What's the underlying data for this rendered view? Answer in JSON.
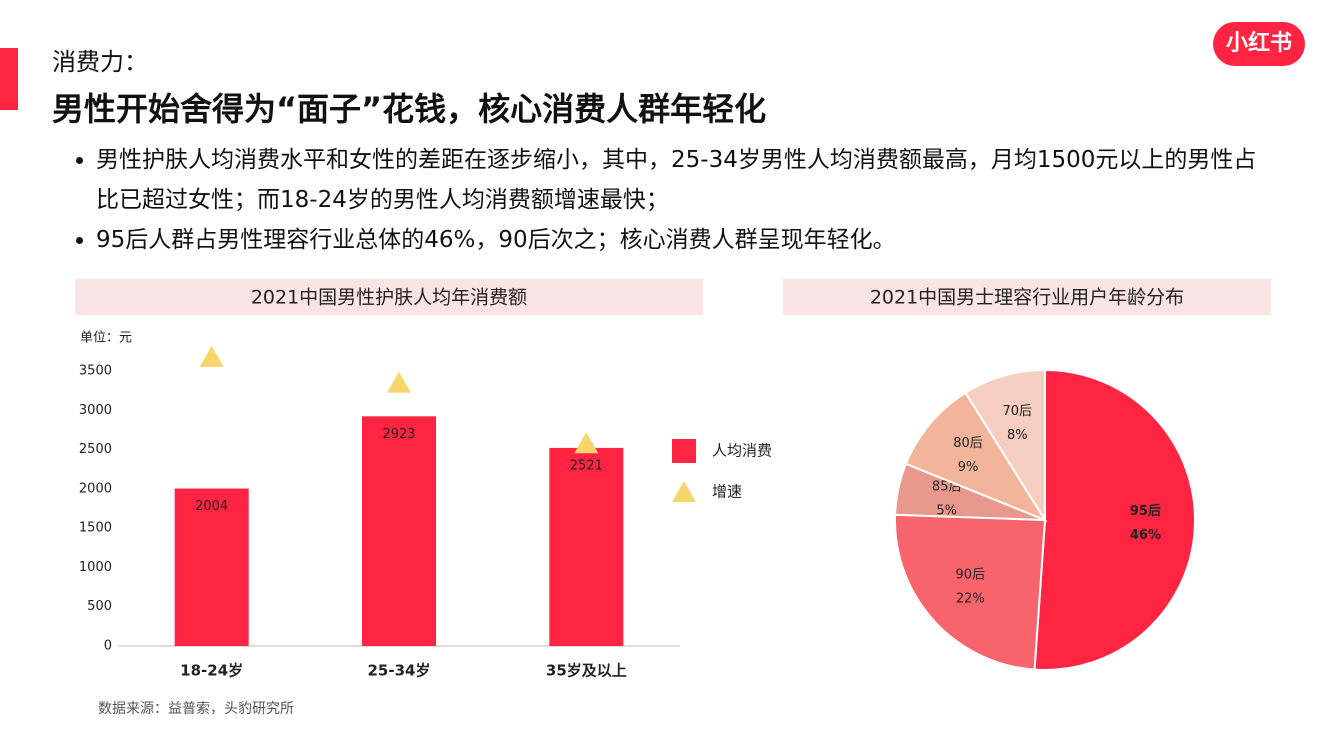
{
  "header": {
    "kicker": "消费力：",
    "title": "男性开始舍得为“面子”花钱，核心消费人群年轻化",
    "logo": "小红书"
  },
  "bullets": [
    "男性护肤人均消费水平和女性的差距在逐步缩小，其中，25-34岁男性人均消费额最高，月均1500元以上的男性占比已超过女性；而18-24岁的男性人均消费额增速最快；",
    "95后人群占男性理容行业总体的46%，90后次之；核心消费人群呈现年轻化。"
  ],
  "source": "数据来源：益普索，头豹研究所",
  "chart_data": [
    {
      "type": "bar",
      "title": "2021中国男性护肤人均年消费额",
      "unit": "单位：元",
      "categories": [
        "18-24岁",
        "25-34岁",
        "35岁及以上"
      ],
      "series": [
        {
          "name": "人均消费",
          "color": "#ff2442",
          "values": [
            2004,
            2923,
            2521
          ]
        },
        {
          "name": "增速",
          "color": "#f9d56e",
          "marker": "triangle",
          "values": [
            3680,
            3350,
            2580
          ]
        }
      ],
      "ylim": [
        0,
        3500
      ],
      "yticks": [
        0,
        500,
        1000,
        1500,
        2000,
        2500,
        3000,
        3500
      ],
      "grid": false
    },
    {
      "type": "pie",
      "title": "2021中国男士理容行业用户年龄分布",
      "categories": [
        "95后",
        "90后",
        "85后",
        "80后",
        "70后"
      ],
      "values": [
        46,
        22,
        5,
        9,
        8
      ],
      "value_labels": [
        "46%",
        "22%",
        "5%",
        "9%",
        "8%"
      ],
      "colors": [
        "#ff2442",
        "#f7646b",
        "#e9988c",
        "#f2b59c",
        "#f5cdc1"
      ]
    }
  ]
}
